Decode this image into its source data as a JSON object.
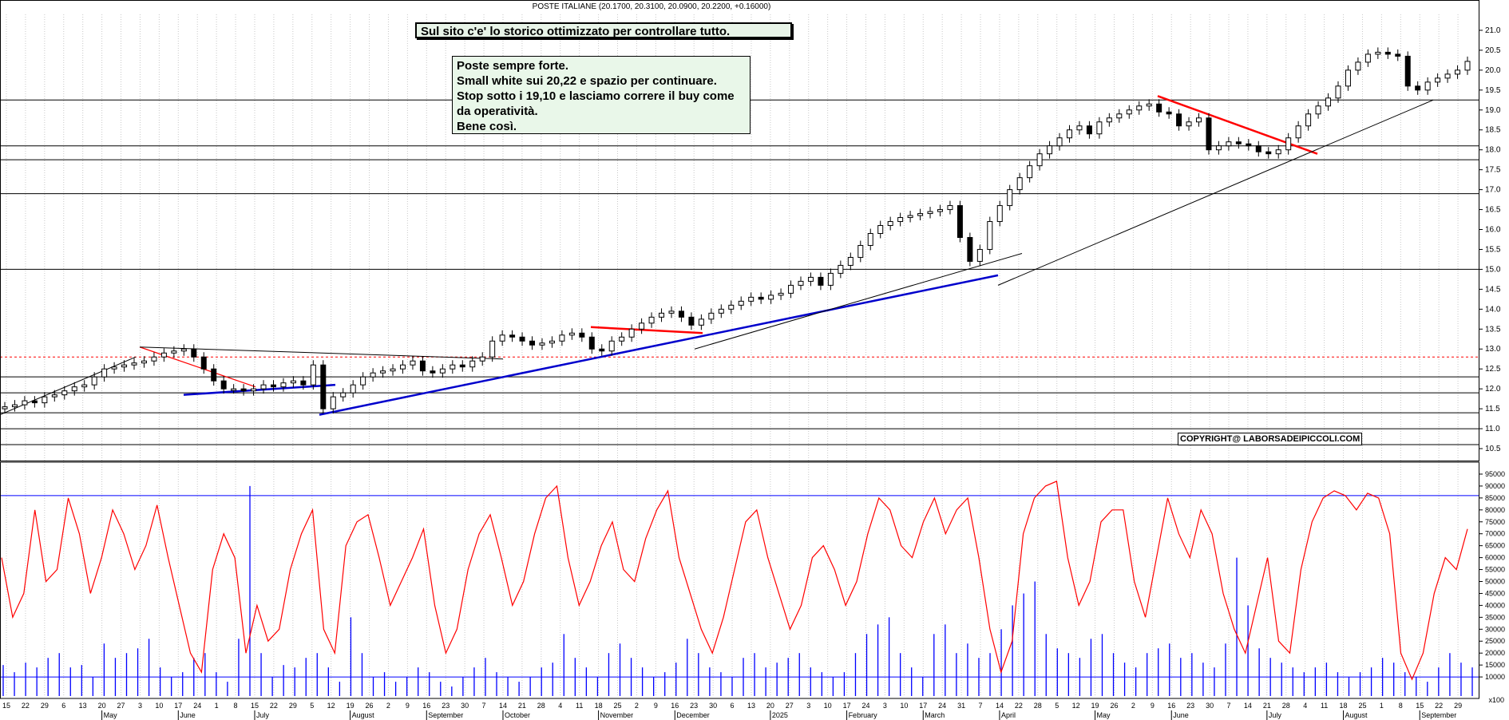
{
  "header": "POSTE ITALIANE (20.1700, 20.3100, 20.0900, 20.2200, +0.16000)",
  "banner": "Sul sito c'e' lo storico ottimizzato per controllare tutto.",
  "note": {
    "lines": [
      "Poste sempre forte.",
      "Small white sui 20,22 e spazio per continuare.",
      "Stop sotto i 19,10 e lasciamo correre il buy come",
      "da operatività.",
      "Bene così."
    ]
  },
  "copyright": "COPYRIGHT@ LABORSADEIPICCOLI.COM",
  "volume_unit": "x100",
  "colors": {
    "candle": "#000000",
    "oscillator": "#ff0000",
    "volume": "#0000ff",
    "support_trend": "#0000cc",
    "resistance_trend": "#ff0000",
    "level_dashed": "#ff0000",
    "grid": "#c8c8c8"
  },
  "chart_data": [
    {
      "type": "candlestick",
      "title": "POSTE ITALIANE",
      "ohlc_last": {
        "open": 20.17,
        "high": 20.31,
        "low": 20.09,
        "close": 20.22,
        "change": 0.16
      },
      "y_ticks": [
        10.5,
        11.0,
        11.5,
        12.0,
        12.5,
        13.0,
        13.5,
        14.0,
        14.5,
        15.0,
        15.5,
        16.0,
        16.5,
        17.0,
        17.5,
        18.0,
        18.5,
        19.0,
        19.5,
        20.0,
        20.5,
        21.0
      ],
      "ylim": [
        10.3,
        21.4
      ],
      "horizontal_levels": [
        10.6,
        11.0,
        11.4,
        11.9,
        12.3,
        15.0,
        16.9,
        17.75,
        18.1,
        19.25
      ],
      "dashed_level": 12.8,
      "grid": true,
      "x_day_labels": [
        "15",
        "22",
        "29",
        "6",
        "13",
        "20",
        "27",
        "3",
        "10",
        "17",
        "24",
        "1",
        "8",
        "15",
        "22",
        "29",
        "5",
        "12",
        "19",
        "26",
        "2",
        "9",
        "16",
        "23",
        "30",
        "7",
        "14",
        "21",
        "28",
        "4",
        "11",
        "18",
        "25",
        "2",
        "9",
        "16",
        "23",
        "30",
        "6",
        "13",
        "20",
        "27",
        "3",
        "10",
        "17",
        "24",
        "3",
        "10",
        "17",
        "24",
        "31",
        "7",
        "14",
        "22",
        "28",
        "5",
        "12",
        "19",
        "26",
        "2",
        "9",
        "16",
        "23",
        "30",
        "7",
        "14",
        "21",
        "28",
        "4",
        "11",
        "18",
        "25",
        "1",
        "8",
        "15",
        "22",
        "29"
      ],
      "x_month_labels": [
        "May",
        "June",
        "July",
        "August",
        "September",
        "October",
        "November",
        "December",
        "2025",
        "February",
        "March",
        "April",
        "May",
        "June",
        "July",
        "August",
        "September"
      ],
      "series": [
        {
          "closes": [
            11.55,
            11.6,
            11.7,
            11.65,
            11.8,
            11.85,
            11.95,
            12.05,
            12.1,
            12.3,
            12.5,
            12.55,
            12.6,
            12.65,
            12.7,
            12.8,
            12.9,
            12.95,
            13.0,
            12.8,
            12.5,
            12.2,
            12.0,
            12.0,
            11.95,
            12.0,
            12.1,
            12.05,
            12.15,
            12.2,
            12.1,
            12.6,
            11.5,
            11.8,
            11.9,
            12.1,
            12.3,
            12.4,
            12.45,
            12.5,
            12.6,
            12.7,
            12.45,
            12.4,
            12.5,
            12.6,
            12.55,
            12.7,
            12.8,
            13.2,
            13.35,
            13.3,
            13.2,
            13.1,
            13.15,
            13.2,
            13.35,
            13.4,
            13.3,
            13.0,
            12.95,
            13.2,
            13.3,
            13.5,
            13.65,
            13.8,
            13.9,
            13.95,
            13.8,
            13.6,
            13.75,
            13.9,
            14.0,
            14.1,
            14.2,
            14.3,
            14.25,
            14.35,
            14.4,
            14.6,
            14.7,
            14.8,
            14.6,
            14.9,
            15.1,
            15.3,
            15.6,
            15.9,
            16.1,
            16.2,
            16.3,
            16.35,
            16.4,
            16.45,
            16.5,
            16.6,
            15.8,
            15.2,
            15.5,
            16.2,
            16.6,
            17.0,
            17.3,
            17.6,
            17.9,
            18.1,
            18.3,
            18.5,
            18.6,
            18.4,
            18.7,
            18.8,
            18.9,
            19.0,
            19.1,
            19.15,
            18.95,
            18.9,
            18.6,
            18.7,
            18.8,
            18.0,
            18.1,
            18.2,
            18.15,
            18.1,
            17.95,
            17.9,
            18.0,
            18.3,
            18.6,
            18.9,
            19.1,
            19.3,
            19.6,
            20.0,
            20.2,
            20.4,
            20.45,
            20.4,
            20.35,
            19.6,
            19.5,
            19.7,
            19.8,
            19.9,
            20.0,
            20.22
          ]
        }
      ]
    },
    {
      "type": "line",
      "title": "",
      "y_ticks": [
        10000,
        15000,
        20000,
        25000,
        30000,
        35000,
        40000,
        45000,
        50000,
        55000,
        60000,
        65000,
        70000,
        75000,
        80000,
        85000,
        90000,
        95000
      ],
      "ylim": [
        2000,
        99000
      ],
      "reference_levels": [
        86000,
        10000
      ],
      "series": [
        {
          "values": [
            60000,
            35000,
            45000,
            80000,
            50000,
            55000,
            85000,
            70000,
            45000,
            60000,
            80000,
            70000,
            55000,
            65000,
            82000,
            60000,
            40000,
            20000,
            12000,
            55000,
            70000,
            60000,
            20000,
            40000,
            25000,
            30000,
            55000,
            70000,
            80000,
            30000,
            20000,
            65000,
            75000,
            78000,
            60000,
            40000,
            50000,
            60000,
            72000,
            40000,
            20000,
            30000,
            55000,
            70000,
            78000,
            60000,
            40000,
            50000,
            70000,
            85000,
            90000,
            60000,
            40000,
            50000,
            65000,
            75000,
            55000,
            50000,
            68000,
            80000,
            88000,
            60000,
            45000,
            30000,
            20000,
            35000,
            55000,
            75000,
            80000,
            60000,
            45000,
            30000,
            40000,
            60000,
            65000,
            55000,
            40000,
            50000,
            70000,
            85000,
            80000,
            65000,
            60000,
            75000,
            85000,
            70000,
            80000,
            85000,
            60000,
            30000,
            12000,
            25000,
            70000,
            85000,
            90000,
            92000,
            60000,
            40000,
            50000,
            75000,
            80000,
            80000,
            50000,
            35000,
            60000,
            85000,
            70000,
            60000,
            80000,
            70000,
            45000,
            30000,
            20000,
            40000,
            60000,
            25000,
            20000,
            55000,
            75000,
            85000,
            88000,
            86000,
            80000,
            87000,
            85000,
            70000,
            20000,
            9000,
            20000,
            45000,
            60000,
            55000,
            72000
          ]
        },
        {
          "values": [
            15000,
            12000,
            16000,
            14000,
            18000,
            20000,
            14000,
            15000,
            10000,
            24000,
            18000,
            20000,
            22000,
            26000,
            14000,
            10000,
            12000,
            18000,
            20000,
            12000,
            8000,
            26000,
            90000,
            20000,
            10000,
            15000,
            14000,
            18000,
            20000,
            14000,
            8000,
            35000,
            20000,
            10000,
            12000,
            8000,
            10000,
            14000,
            12000,
            8000,
            6000,
            10000,
            14000,
            18000,
            12000,
            10000,
            8000,
            10000,
            14000,
            16000,
            28000,
            18000,
            14000,
            10000,
            20000,
            24000,
            18000,
            14000,
            10000,
            12000,
            16000,
            26000,
            20000,
            14000,
            12000,
            10000,
            18000,
            20000,
            14000,
            16000,
            18000,
            20000,
            14000,
            12000,
            10000,
            12000,
            20000,
            28000,
            32000,
            35000,
            20000,
            14000,
            10000,
            28000,
            32000,
            20000,
            24000,
            18000,
            20000,
            30000,
            40000,
            45000,
            50000,
            28000,
            22000,
            20000,
            18000,
            26000,
            28000,
            20000,
            16000,
            14000,
            20000,
            22000,
            24000,
            18000,
            20000,
            16000,
            14000,
            24000,
            60000,
            40000,
            22000,
            18000,
            16000,
            14000,
            12000,
            14000,
            16000,
            12000,
            10000,
            12000,
            14000,
            18000,
            16000,
            12000,
            10000,
            8000,
            14000,
            20000,
            16000,
            14000
          ]
        }
      ]
    }
  ]
}
